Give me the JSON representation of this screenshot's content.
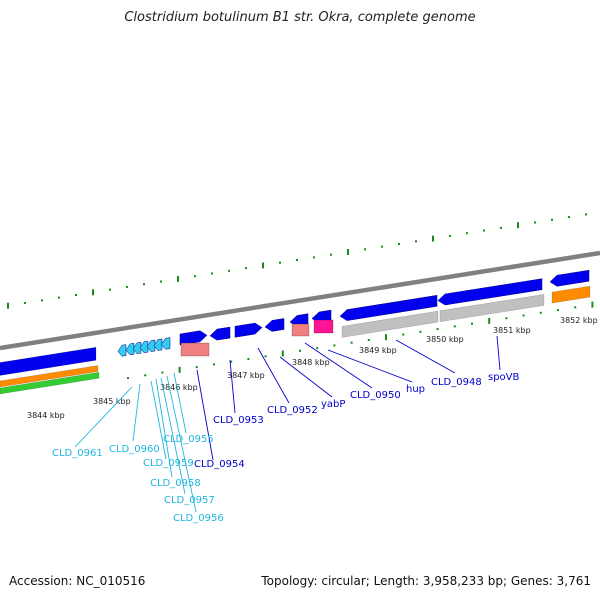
{
  "title": "Clostridium botulinum B1 str. Okra, complete genome",
  "footer": {
    "accession": "Accession: NC_010516",
    "summary": "Topology: circular; Length: 3,958,233 bp; Genes: 3,761"
  },
  "colors": {
    "gene_forward": "#0000ee",
    "gene_cyan": "#33ccee",
    "label_blue": "#0000cc",
    "label_cyan": "#1fb6df",
    "tick": "#1a8a1a",
    "backbone": "#808080",
    "orange_track": "#ff8c00",
    "green_track": "#33cc33",
    "gray_feature": "#c0c0c0",
    "pink_feature": "#f08080",
    "magenta_feature": "#ff1493"
  },
  "ruler_labels": [
    "3844 kbp",
    "3845 kbp",
    "3846 kbp",
    "3847 kbp",
    "3848 kbp",
    "3849 kbp",
    "3850 kbp",
    "3851 kbp",
    "3852 kbp"
  ],
  "gene_labels": {
    "blue": [
      "CLD_0954",
      "CLD_0953",
      "CLD_0952",
      "yabP",
      "CLD_0950",
      "hup",
      "CLD_0948",
      "spoVB"
    ],
    "cyan": [
      "CLD_0961",
      "CLD_0960",
      "CLD_0959",
      "CLD_0958",
      "CLD_0957",
      "CLD_0956",
      "CLD_0955"
    ]
  }
}
